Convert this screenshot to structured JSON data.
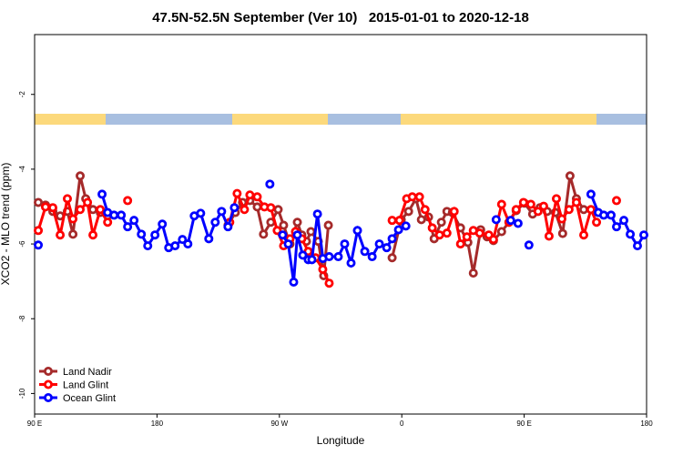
{
  "chart_data": {
    "type": "line",
    "title": "47.5N-52.5N September (Ver 10)   2015-01-01 to 2020-12-18",
    "x_label": "Longitude",
    "y_label": "XCO2 - MLO trend (ppm)",
    "xlim": [
      90,
      540
    ],
    "ylim": [
      -10.55,
      -0.4
    ],
    "xticks": [
      {
        "value": 90,
        "label": "90 E"
      },
      {
        "value": 180,
        "label": "180"
      },
      {
        "value": 270,
        "label": "90 W"
      },
      {
        "value": 360,
        "label": "0"
      },
      {
        "value": 450,
        "label": "90 E"
      },
      {
        "value": 540,
        "label": "180"
      }
    ],
    "yticks": [
      -10,
      -8,
      -6,
      -4,
      -2
    ],
    "legend": "bottom-left",
    "series": [
      {
        "name": "Land Nadir",
        "color": "#a52a2a",
        "x": [
          92.7,
          98,
          103.4,
          108.8,
          114.1,
          118.2,
          123.5,
          127.6,
          132.9,
          138.3,
          143.7,
          null,
          232.2,
          237.6,
          242.9,
          248.3,
          253.7,
          258.3,
          263.7,
          269.1,
          273.1,
          277.8,
          283.2,
          286.5,
          289.9,
          293.2,
          298.6,
          302.6,
          306,
          null,
          352.9,
          359.6,
          365,
          370.4,
          374.4,
          379.7,
          383.8,
          389.1,
          393.2,
          397.2,
          403.2,
          408.6,
          412.6,
          418,
          422.7,
          427.4,
          433.4,
          438.8,
          444.1,
          450.2,
          456.2,
          461.6,
          466.9,
          473,
          478.3,
          483.7,
          488.4,
          493.8
        ],
        "values": [
          -4.89,
          -4.96,
          -5.13,
          -5.25,
          -5.13,
          -5.74,
          -4.18,
          -4.79,
          -5.08,
          -5.16,
          -5.25,
          null,
          -5.5,
          -5.16,
          -4.89,
          -4.84,
          -5.01,
          -5.74,
          -5.42,
          -5.08,
          -5.5,
          -6.0,
          -5.42,
          -5.76,
          -5.93,
          -5.67,
          -5.93,
          -6.85,
          -5.5,
          null,
          -6.37,
          -5.35,
          -5.13,
          -4.79,
          -5.35,
          -5.28,
          -5.86,
          -5.42,
          -5.13,
          -5.16,
          -5.57,
          -5.96,
          -6.78,
          -5.62,
          -5.81,
          -5.91,
          -5.67,
          -5.42,
          -5.11,
          -4.91,
          -5.2,
          -5.03,
          -5.13,
          -5.16,
          -5.72,
          -4.18,
          -4.79,
          -5.08
        ]
      },
      {
        "name": "Land Glint",
        "color": "#ff0000",
        "x": [
          92.7,
          98,
          103.4,
          108.8,
          114.1,
          118.2,
          123.5,
          128.9,
          132.9,
          138.3,
          143.7,
          null,
          158.4,
          null,
          233.5,
          238.9,
          244.3,
          248.3,
          253.7,
          259,
          263.7,
          268.4,
          273.1,
          277.8,
          281.8,
          286.5,
          291.2,
          296.6,
          301.9,
          306.6,
          null,
          352.9,
          358.3,
          363.6,
          367.7,
          373,
          377.1,
          382.4,
          387.8,
          393.2,
          398.5,
          403.2,
          407.9,
          412.6,
          417.3,
          424,
          427.4,
          433.4,
          438.8,
          444.1,
          449.5,
          454.9,
          460.2,
          464.3,
          468.3,
          473.7,
          477.7,
          483,
          488.4,
          493.8,
          499.1,
          503.2,
          null,
          517.9
        ],
        "values": [
          -5.64,
          -5.01,
          -5.03,
          -5.76,
          -4.79,
          -5.33,
          -5.08,
          -4.89,
          -5.76,
          -5.08,
          -5.42,
          null,
          -4.84,
          null,
          -5.42,
          -4.65,
          -5.08,
          -4.69,
          -4.74,
          -5.01,
          -5.03,
          -5.64,
          -6.05,
          -5.86,
          -5.67,
          -5.86,
          -6.2,
          -6.37,
          -6.68,
          -7.05,
          null,
          -5.37,
          -5.37,
          -4.79,
          -4.74,
          -4.74,
          -5.08,
          -5.57,
          -5.76,
          -5.71,
          -5.13,
          -6.0,
          -5.81,
          -5.64,
          -5.71,
          -5.76,
          -5.88,
          -4.94,
          -5.42,
          -5.08,
          -4.89,
          -4.94,
          -5.13,
          -4.99,
          -5.79,
          -4.79,
          -5.33,
          -5.08,
          -4.89,
          -5.76,
          -5.08,
          -5.42,
          null,
          -4.84
        ]
      },
      {
        "name": "Ocean Glint",
        "color": "#0000ff",
        "x": [
          92.7,
          null,
          139.6,
          143.7,
          148.4,
          153.7,
          158.4,
          163.1,
          168.5,
          173.2,
          178.5,
          183.9,
          188.6,
          193.3,
          198.7,
          202.7,
          207.4,
          212.1,
          218.1,
          222.8,
          227.5,
          232.2,
          236.9,
          null,
          263,
          null,
          272.4,
          276.5,
          280.5,
          283.2,
          287.2,
          291.2,
          293.9,
          298,
          302,
          306.6,
          313.3,
          318,
          322.7,
          327.4,
          332.8,
          338.2,
          343.5,
          348.9,
          352.9,
          357.6,
          363,
          null,
          429.4,
          null,
          440.1,
          445.5,
          null,
          453.5,
          null,
          499.1,
          504.5,
          508.5,
          513.9,
          517.9,
          523.3,
          528,
          533.3,
          538
        ],
        "values": [
          -6.03,
          null,
          -4.67,
          -5.16,
          -5.23,
          -5.23,
          -5.54,
          -5.37,
          -5.74,
          -6.05,
          -5.76,
          -5.47,
          -6.1,
          -6.05,
          -5.88,
          -6.0,
          -5.25,
          -5.18,
          -5.86,
          -5.42,
          -5.13,
          -5.54,
          -5.03,
          null,
          -4.4,
          null,
          -5.76,
          -6.0,
          -7.02,
          -5.76,
          -6.3,
          -6.42,
          -6.42,
          -5.2,
          -6.39,
          -6.34,
          -6.34,
          -6.0,
          -6.51,
          -5.64,
          -6.2,
          -6.34,
          -6.0,
          -6.1,
          -5.86,
          -5.62,
          -5.52,
          null,
          -5.35,
          null,
          -5.37,
          -5.45,
          null,
          -6.03,
          null,
          -4.67,
          -5.16,
          -5.23,
          -5.23,
          -5.54,
          -5.37,
          -5.74,
          -6.05,
          -5.76
        ]
      }
    ]
  }
}
